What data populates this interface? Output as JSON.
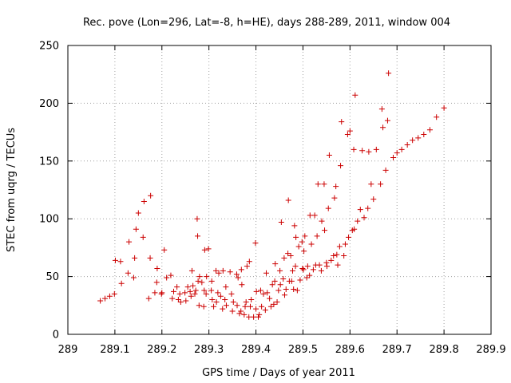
{
  "chart_data": {
    "type": "scatter",
    "title": "Rec. pove (Lon=296, Lat=-8, h=HE), days 288-289, 2011, window 004",
    "xlabel": "GPS time / Days of year 2011",
    "ylabel": "STEC from uqrg / TECUs",
    "xlim": [
      289,
      289.9
    ],
    "ylim": [
      0,
      250
    ],
    "xticks": [
      "289",
      "289.1",
      "289.2",
      "289.3",
      "289.4",
      "289.5",
      "289.6",
      "289.7",
      "289.8",
      "289.9"
    ],
    "yticks": [
      "0",
      "50",
      "100",
      "150",
      "200",
      "250"
    ],
    "grid": true,
    "marker": "+",
    "series_color": "#cc0000",
    "series": [
      {
        "name": "STEC",
        "points": [
          [
            289.069,
            29
          ],
          [
            289.079,
            31
          ],
          [
            289.089,
            33
          ],
          [
            289.099,
            35
          ],
          [
            289.101,
            64
          ],
          [
            289.112,
            63
          ],
          [
            289.114,
            44
          ],
          [
            289.128,
            53
          ],
          [
            289.13,
            80
          ],
          [
            289.14,
            49
          ],
          [
            289.142,
            66
          ],
          [
            289.145,
            91
          ],
          [
            289.15,
            105
          ],
          [
            289.16,
            84
          ],
          [
            289.162,
            115
          ],
          [
            289.172,
            31
          ],
          [
            289.175,
            66
          ],
          [
            289.176,
            120
          ],
          [
            289.185,
            36
          ],
          [
            289.189,
            45
          ],
          [
            289.19,
            57
          ],
          [
            289.199,
            35
          ],
          [
            289.2,
            36
          ],
          [
            289.205,
            73
          ],
          [
            289.21,
            49
          ],
          [
            289.219,
            51
          ],
          [
            289.222,
            31
          ],
          [
            289.225,
            37
          ],
          [
            289.232,
            41
          ],
          [
            289.235,
            30
          ],
          [
            289.238,
            35
          ],
          [
            289.24,
            28
          ],
          [
            289.249,
            36
          ],
          [
            289.251,
            29
          ],
          [
            289.255,
            41
          ],
          [
            289.26,
            37
          ],
          [
            289.262,
            33
          ],
          [
            289.264,
            55
          ],
          [
            289.266,
            42
          ],
          [
            289.27,
            35
          ],
          [
            289.272,
            38
          ],
          [
            289.275,
            100
          ],
          [
            289.276,
            85
          ],
          [
            289.277,
            46
          ],
          [
            289.279,
            25
          ],
          [
            289.28,
            50
          ],
          [
            289.285,
            45
          ],
          [
            289.289,
            24
          ],
          [
            289.29,
            38
          ],
          [
            289.291,
            73
          ],
          [
            289.294,
            35
          ],
          [
            289.295,
            50
          ],
          [
            289.299,
            74
          ],
          [
            289.305,
            38
          ],
          [
            289.306,
            46
          ],
          [
            289.307,
            30
          ],
          [
            289.31,
            24
          ],
          [
            289.315,
            55
          ],
          [
            289.316,
            28
          ],
          [
            289.319,
            36
          ],
          [
            289.321,
            53
          ],
          [
            289.325,
            33
          ],
          [
            289.329,
            22
          ],
          [
            289.33,
            55
          ],
          [
            289.334,
            30
          ],
          [
            289.336,
            41
          ],
          [
            289.337,
            25
          ],
          [
            289.345,
            54
          ],
          [
            289.348,
            35
          ],
          [
            289.35,
            20
          ],
          [
            289.352,
            28
          ],
          [
            289.359,
            52
          ],
          [
            289.36,
            25
          ],
          [
            289.362,
            49
          ],
          [
            289.365,
            18
          ],
          [
            289.368,
            20
          ],
          [
            289.369,
            56
          ],
          [
            289.37,
            43
          ],
          [
            289.375,
            17
          ],
          [
            289.377,
            24
          ],
          [
            289.379,
            28
          ],
          [
            289.381,
            59
          ],
          [
            289.385,
            15
          ],
          [
            289.386,
            63
          ],
          [
            289.388,
            24
          ],
          [
            289.39,
            30
          ],
          [
            289.395,
            15
          ],
          [
            289.399,
            79
          ],
          [
            289.4,
            22
          ],
          [
            289.401,
            37
          ],
          [
            289.405,
            15
          ],
          [
            289.407,
            17
          ],
          [
            289.41,
            38
          ],
          [
            289.412,
            24
          ],
          [
            289.416,
            35
          ],
          [
            289.42,
            21
          ],
          [
            289.422,
            53
          ],
          [
            289.424,
            36
          ],
          [
            289.429,
            31
          ],
          [
            289.432,
            24
          ],
          [
            289.435,
            43
          ],
          [
            289.438,
            26
          ],
          [
            289.44,
            46
          ],
          [
            289.441,
            61
          ],
          [
            289.445,
            28
          ],
          [
            289.448,
            38
          ],
          [
            289.451,
            55
          ],
          [
            289.452,
            43
          ],
          [
            289.454,
            97
          ],
          [
            289.458,
            48
          ],
          [
            289.46,
            66
          ],
          [
            289.461,
            34
          ],
          [
            289.464,
            39
          ],
          [
            289.468,
            70
          ],
          [
            289.469,
            116
          ],
          [
            289.471,
            46
          ],
          [
            289.474,
            68
          ],
          [
            289.476,
            46
          ],
          [
            289.478,
            55
          ],
          [
            289.48,
            39
          ],
          [
            289.482,
            94
          ],
          [
            289.484,
            59
          ],
          [
            289.485,
            84
          ],
          [
            289.488,
            38
          ],
          [
            289.491,
            76
          ],
          [
            289.494,
            47
          ],
          [
            289.498,
            80
          ],
          [
            289.499,
            57
          ],
          [
            289.501,
            56
          ],
          [
            289.502,
            72
          ],
          [
            289.504,
            85
          ],
          [
            289.508,
            49
          ],
          [
            289.51,
            59
          ],
          [
            289.514,
            51
          ],
          [
            289.515,
            103
          ],
          [
            289.518,
            78
          ],
          [
            289.522,
            56
          ],
          [
            289.525,
            103
          ],
          [
            289.527,
            60
          ],
          [
            289.53,
            85
          ],
          [
            289.532,
            130
          ],
          [
            289.535,
            60
          ],
          [
            289.539,
            55
          ],
          [
            289.54,
            98
          ],
          [
            289.545,
            130
          ],
          [
            289.546,
            90
          ],
          [
            289.55,
            62
          ],
          [
            289.551,
            59
          ],
          [
            289.554,
            109
          ],
          [
            289.556,
            155
          ],
          [
            289.56,
            64
          ],
          [
            289.565,
            68
          ],
          [
            289.567,
            118
          ],
          [
            289.57,
            128
          ],
          [
            289.572,
            69
          ],
          [
            289.574,
            60
          ],
          [
            289.578,
            76
          ],
          [
            289.58,
            146
          ],
          [
            289.582,
            184
          ],
          [
            289.587,
            68
          ],
          [
            289.59,
            78
          ],
          [
            289.595,
            173
          ],
          [
            289.597,
            84
          ],
          [
            289.6,
            176
          ],
          [
            289.605,
            90
          ],
          [
            289.608,
            160
          ],
          [
            289.609,
            91
          ],
          [
            289.611,
            207
          ],
          [
            289.616,
            98
          ],
          [
            289.622,
            108
          ],
          [
            289.626,
            159
          ],
          [
            289.63,
            101
          ],
          [
            289.638,
            109
          ],
          [
            289.64,
            158
          ],
          [
            289.645,
            130
          ],
          [
            289.65,
            117
          ],
          [
            289.656,
            160
          ],
          [
            289.665,
            130
          ],
          [
            289.668,
            195
          ],
          [
            289.67,
            179
          ],
          [
            289.676,
            142
          ],
          [
            289.68,
            185
          ],
          [
            289.682,
            226
          ],
          [
            289.692,
            153
          ],
          [
            289.7,
            157
          ],
          [
            289.71,
            160
          ],
          [
            289.722,
            164
          ],
          [
            289.733,
            168
          ],
          [
            289.745,
            170
          ],
          [
            289.757,
            173
          ],
          [
            289.77,
            177
          ],
          [
            289.784,
            188
          ],
          [
            289.8,
            196
          ]
        ]
      }
    ]
  }
}
